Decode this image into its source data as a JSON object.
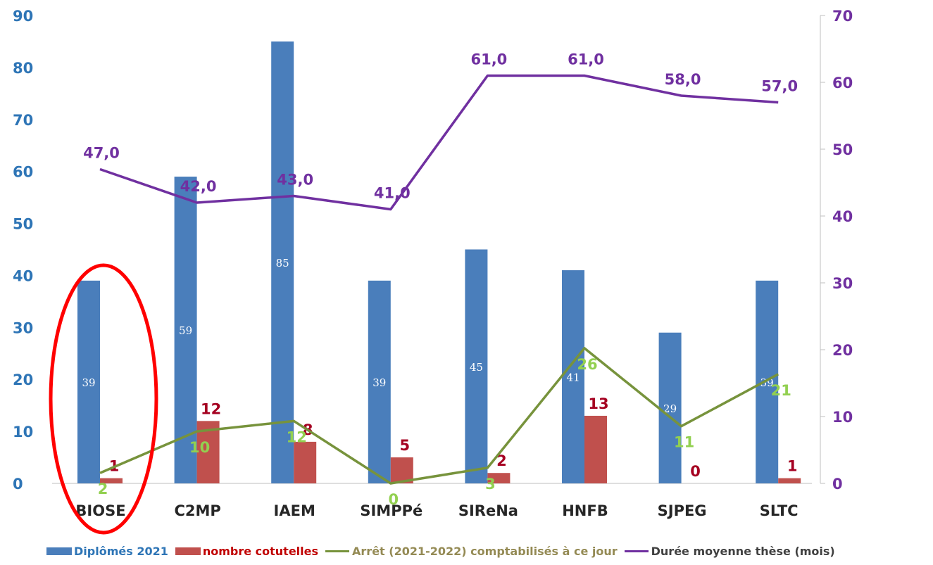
{
  "chart_data": {
    "type": "bar",
    "categories": [
      "BIOSE",
      "C2MP",
      "IAEM",
      "SIMPPé",
      "SIReNa",
      "HNFB",
      "SJPEG",
      "SLTC"
    ],
    "left_axis": {
      "min": 0,
      "max": 90,
      "ticks": [
        0,
        10,
        20,
        30,
        40,
        50,
        60,
        70,
        80,
        90
      ],
      "color": "#2e75b6"
    },
    "right_axis": {
      "min": 0,
      "max": 70,
      "ticks": [
        0,
        10,
        20,
        30,
        40,
        50,
        60,
        70
      ],
      "color": "#7030a0"
    },
    "series": [
      {
        "name": "Diplômés 2021",
        "kind": "bar",
        "axis": "left",
        "color": "#4a7ebb",
        "label_color": "#ffffff",
        "values": [
          39,
          59,
          85,
          39,
          45,
          41,
          29,
          39
        ],
        "labels": [
          "39",
          "59",
          "85",
          "39",
          "45",
          "41",
          "29",
          "39"
        ]
      },
      {
        "name": "nombre cotutelles",
        "kind": "bar",
        "axis": "left",
        "color": "#c0504d",
        "label_color": "#a50021",
        "values": [
          1,
          12,
          8,
          5,
          2,
          13,
          0,
          1
        ],
        "labels": [
          "1",
          "12",
          "8",
          "5",
          "2",
          "13",
          "0",
          "1"
        ]
      },
      {
        "name": "Arrêt (2021-2022) comptabilisés à ce jour",
        "kind": "line",
        "axis": "left",
        "color": "#77933c",
        "label_color": "#92d050",
        "values": [
          2,
          10,
          12,
          0,
          3,
          26,
          11,
          21
        ],
        "labels": [
          "2",
          "10",
          "12",
          "0",
          "3",
          "26",
          "11",
          "21"
        ]
      },
      {
        "name": "Durée moyenne thèse (mois)",
        "kind": "line",
        "axis": "right",
        "color": "#7030a0",
        "label_color": "#7030a0",
        "values": [
          47.0,
          42.0,
          43.0,
          41.0,
          61.0,
          61.0,
          58.0,
          57.0
        ],
        "labels": [
          "47,0",
          "42,0",
          "43,0",
          "41,0",
          "61,0",
          "61,0",
          "58,0",
          "57,0"
        ]
      }
    ],
    "highlight": {
      "category": "BIOSE",
      "shape": "ellipse",
      "color": "#ff0000"
    },
    "grid": false,
    "legend_position": "bottom"
  }
}
